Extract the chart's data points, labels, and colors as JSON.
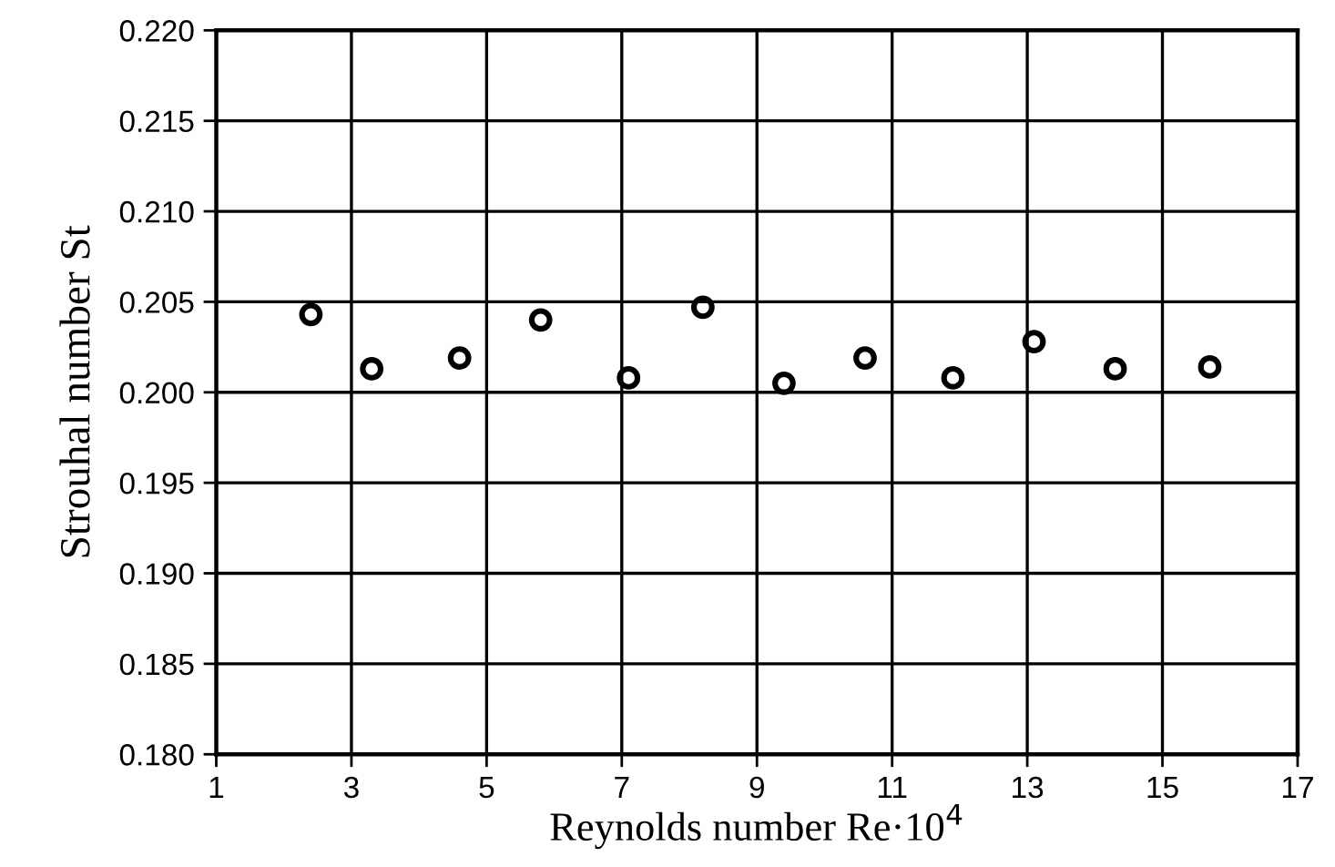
{
  "chart_data": {
    "type": "scatter",
    "xlabel": "Reynolds number Re·10$^{4}$",
    "ylabel": "Strouhal number St",
    "x": [
      2.4,
      3.3,
      4.6,
      5.8,
      7.1,
      8.2,
      9.4,
      10.6,
      11.9,
      13.1,
      14.3,
      15.7
    ],
    "series": [
      {
        "color": "#000000",
        "values": [
          0.2043,
          0.2013,
          0.2019,
          0.204,
          0.2008,
          0.2047,
          0.2005,
          0.2019,
          0.2008,
          0.2028,
          0.2013,
          0.2014
        ]
      }
    ],
    "xlim": [
      1,
      17
    ],
    "xticks": [
      1,
      3,
      5,
      7,
      9,
      11,
      13,
      15,
      17
    ],
    "ylim": [
      0.18,
      0.22
    ],
    "yticks": [
      {
        "value": 0.18,
        "label": "0.180"
      },
      {
        "value": 0.185,
        "label": "0.185"
      },
      {
        "value": 0.19,
        "label": "0.190"
      },
      {
        "value": 0.195,
        "label": "0.195"
      },
      {
        "value": 0.2,
        "label": "0.200"
      },
      {
        "value": 0.205,
        "label": "0.205"
      },
      {
        "value": 0.21,
        "label": "0.210"
      },
      {
        "value": 0.215,
        "label": "0.215"
      },
      {
        "value": 0.22,
        "label": "0.220"
      }
    ],
    "grid": true,
    "marker": "circle"
  }
}
